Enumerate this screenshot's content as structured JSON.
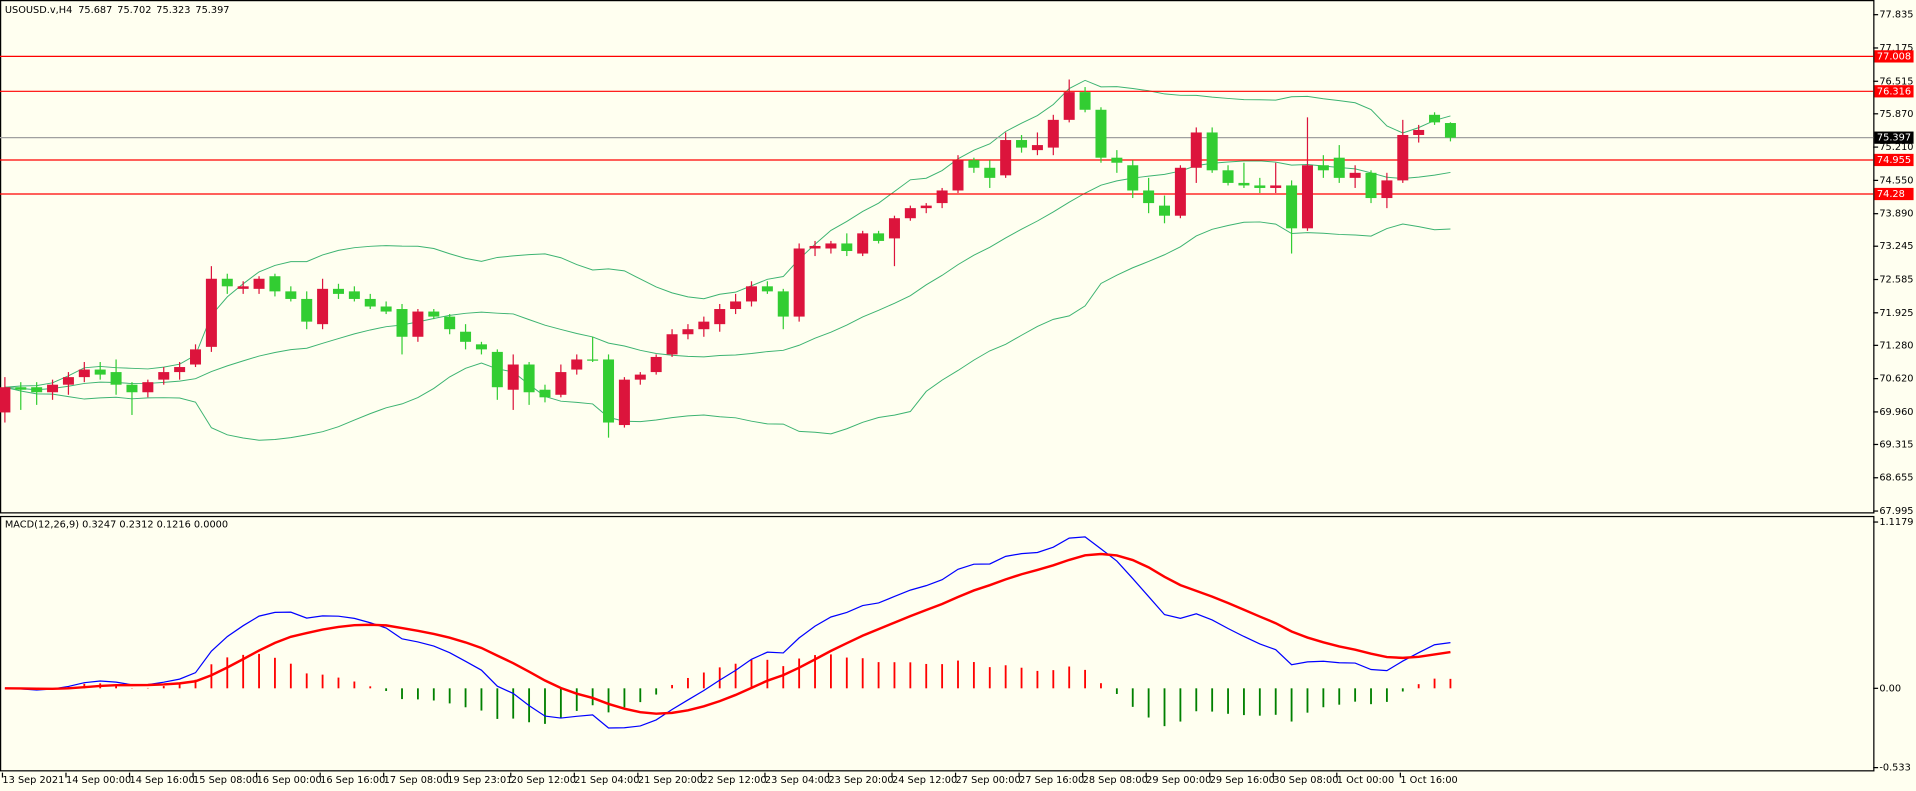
{
  "chart_data": {
    "type": "candlestick",
    "title": "USOUSD.v,H4",
    "header_values": [
      75.687,
      75.702,
      75.323,
      75.397
    ],
    "bull_color": "#dc143c",
    "bear_color": "#32cd32",
    "band_color": "#3cb371",
    "ylim": [
      67.947,
      78.126
    ],
    "yticks": [
      77.835,
      77.175,
      76.515,
      {
        "value": 75.87,
        "label": "75.870"
      },
      {
        "value": 75.21,
        "label": "75.210"
      },
      {
        "value": 74.55,
        "label": "74.550"
      },
      {
        "value": 73.89,
        "label": "73.890"
      },
      73.245,
      72.585,
      71.925,
      {
        "value": 71.28,
        "label": "71.280"
      },
      {
        "value": 70.62,
        "label": "70.620"
      },
      {
        "value": 69.96,
        "label": "69.960"
      },
      69.315,
      68.655,
      67.995
    ],
    "levels": [
      77.008,
      76.316,
      74.955,
      74.28
    ],
    "level_color": "#ff0000",
    "current_price": 75.397,
    "x_labels": [
      "13 Sep 2021",
      "14 Sep 00:00",
      "14 Sep 16:00",
      "15 Sep 08:00",
      "16 Sep 00:00",
      "16 Sep 16:00",
      "17 Sep 08:00",
      "19 Sep 23:01",
      "20 Sep 12:00",
      "21 Sep 04:00",
      "21 Sep 20:00",
      "22 Sep 12:00",
      "23 Sep 04:00",
      "23 Sep 20:00",
      "24 Sep 12:00",
      "27 Sep 00:00",
      "27 Sep 16:00",
      "28 Sep 08:00",
      "29 Sep 00:00",
      "29 Sep 16:00",
      "30 Sep 08:00",
      "1 Oct 00:00",
      "1 Oct 16:00"
    ],
    "ohlc": [
      [
        69.95,
        70.65,
        69.75,
        70.45
      ],
      [
        70.45,
        70.55,
        70.0,
        70.4
      ],
      [
        70.45,
        70.55,
        70.1,
        70.35
      ],
      [
        70.35,
        70.6,
        70.2,
        70.5
      ],
      [
        70.5,
        70.75,
        70.3,
        70.65
      ],
      [
        70.65,
        70.95,
        70.55,
        70.8
      ],
      [
        70.8,
        70.95,
        70.6,
        70.7
      ],
      [
        70.75,
        71.0,
        70.3,
        70.5
      ],
      [
        70.5,
        70.55,
        69.9,
        70.35
      ],
      [
        70.35,
        70.6,
        70.25,
        70.55
      ],
      [
        70.6,
        70.85,
        70.5,
        70.75
      ],
      [
        70.75,
        70.95,
        70.6,
        70.85
      ],
      [
        70.9,
        71.3,
        70.85,
        71.2
      ],
      [
        71.25,
        72.85,
        71.15,
        72.6
      ],
      [
        72.6,
        72.7,
        72.3,
        72.45
      ],
      [
        72.4,
        72.55,
        72.3,
        72.45
      ],
      [
        72.4,
        72.65,
        72.3,
        72.6
      ],
      [
        72.65,
        72.7,
        72.25,
        72.35
      ],
      [
        72.35,
        72.45,
        72.15,
        72.2
      ],
      [
        72.2,
        72.35,
        71.6,
        71.75
      ],
      [
        71.7,
        72.6,
        71.6,
        72.4
      ],
      [
        72.4,
        72.5,
        72.2,
        72.3
      ],
      [
        72.35,
        72.45,
        72.15,
        72.2
      ],
      [
        72.2,
        72.3,
        72.0,
        72.05
      ],
      [
        72.05,
        72.15,
        71.9,
        71.95
      ],
      [
        72.0,
        72.1,
        71.1,
        71.45
      ],
      [
        71.45,
        72.0,
        71.35,
        71.95
      ],
      [
        71.95,
        72.0,
        71.8,
        71.85
      ],
      [
        71.85,
        71.9,
        71.5,
        71.6
      ],
      [
        71.55,
        71.7,
        71.2,
        71.35
      ],
      [
        71.3,
        71.35,
        71.1,
        71.2
      ],
      [
        71.15,
        71.2,
        70.2,
        70.45
      ],
      [
        70.4,
        71.1,
        70.0,
        70.9
      ],
      [
        70.9,
        70.95,
        70.1,
        70.35
      ],
      [
        70.4,
        70.5,
        70.15,
        70.25
      ],
      [
        70.3,
        70.9,
        70.25,
        70.75
      ],
      [
        70.8,
        71.1,
        70.7,
        71.0
      ],
      [
        71.0,
        71.45,
        70.95,
        70.98
      ],
      [
        71.0,
        71.1,
        69.45,
        69.75
      ],
      [
        69.7,
        70.65,
        69.65,
        70.6
      ],
      [
        70.6,
        70.75,
        70.5,
        70.7
      ],
      [
        70.75,
        71.1,
        70.7,
        71.05
      ],
      [
        71.1,
        71.6,
        71.05,
        71.5
      ],
      [
        71.5,
        71.7,
        71.4,
        71.6
      ],
      [
        71.6,
        71.85,
        71.45,
        71.75
      ],
      [
        71.7,
        72.1,
        71.55,
        72.0
      ],
      [
        72.0,
        72.3,
        71.9,
        72.15
      ],
      [
        72.15,
        72.55,
        72.05,
        72.45
      ],
      [
        72.45,
        72.55,
        72.3,
        72.35
      ],
      [
        72.35,
        72.4,
        71.6,
        71.85
      ],
      [
        71.85,
        73.3,
        71.75,
        73.2
      ],
      [
        73.2,
        73.35,
        73.05,
        73.25
      ],
      [
        73.2,
        73.35,
        73.1,
        73.3
      ],
      [
        73.3,
        73.5,
        73.05,
        73.15
      ],
      [
        73.1,
        73.55,
        73.05,
        73.5
      ],
      [
        73.5,
        73.55,
        73.3,
        73.35
      ],
      [
        73.4,
        73.85,
        72.85,
        73.8
      ],
      [
        73.8,
        74.05,
        73.75,
        74.0
      ],
      [
        74.0,
        74.1,
        73.9,
        74.05
      ],
      [
        74.1,
        74.4,
        74.0,
        74.35
      ],
      [
        74.35,
        75.05,
        74.3,
        74.95
      ],
      [
        74.95,
        75.0,
        74.7,
        74.8
      ],
      [
        74.8,
        74.95,
        74.4,
        74.6
      ],
      [
        74.65,
        75.5,
        74.6,
        75.35
      ],
      [
        75.35,
        75.45,
        75.1,
        75.2
      ],
      [
        75.15,
        75.5,
        75.05,
        75.25
      ],
      [
        75.2,
        75.85,
        75.05,
        75.75
      ],
      [
        75.75,
        76.55,
        75.7,
        76.3
      ],
      [
        76.3,
        76.4,
        75.9,
        75.95
      ],
      [
        75.95,
        76.0,
        74.9,
        75.0
      ],
      [
        75.0,
        75.15,
        74.7,
        74.9
      ],
      [
        74.85,
        74.95,
        74.2,
        74.35
      ],
      [
        74.35,
        74.6,
        73.9,
        74.1
      ],
      [
        74.05,
        74.25,
        73.7,
        73.85
      ],
      [
        73.85,
        74.85,
        73.8,
        74.8
      ],
      [
        74.8,
        75.6,
        74.5,
        75.5
      ],
      [
        75.5,
        75.6,
        74.7,
        74.75
      ],
      [
        74.75,
        74.85,
        74.45,
        74.5
      ],
      [
        74.5,
        74.9,
        74.4,
        74.45
      ],
      [
        74.45,
        74.6,
        74.3,
        74.4
      ],
      [
        74.4,
        74.9,
        74.3,
        74.45
      ],
      [
        74.45,
        74.55,
        73.1,
        73.6
      ],
      [
        73.6,
        75.8,
        73.55,
        74.85
      ],
      [
        74.85,
        75.05,
        74.6,
        74.75
      ],
      [
        75.0,
        75.25,
        74.5,
        74.6
      ],
      [
        74.6,
        74.85,
        74.4,
        74.7
      ],
      [
        74.7,
        74.75,
        74.1,
        74.2
      ],
      [
        74.2,
        74.7,
        74.0,
        74.55
      ],
      [
        74.55,
        75.75,
        74.5,
        75.45
      ],
      [
        75.45,
        75.65,
        75.3,
        75.55
      ],
      [
        75.85,
        75.9,
        75.65,
        75.7
      ],
      [
        75.687,
        75.702,
        75.323,
        75.397
      ]
    ],
    "macd_title": "MACD(12,26,9) 0.3247 0.2312 0.1216 0.0000",
    "macd_ylim": [
      -0.567,
      1.159
    ],
    "macd_yticks": [
      1.1179,
      {
        "value": 0,
        "label": "0.00"
      },
      -0.533
    ],
    "macd_color": "#0000ff",
    "signal_color": "#ff0000",
    "hist_up_color": "#ff0000",
    "hist_down_color": "#008000"
  }
}
